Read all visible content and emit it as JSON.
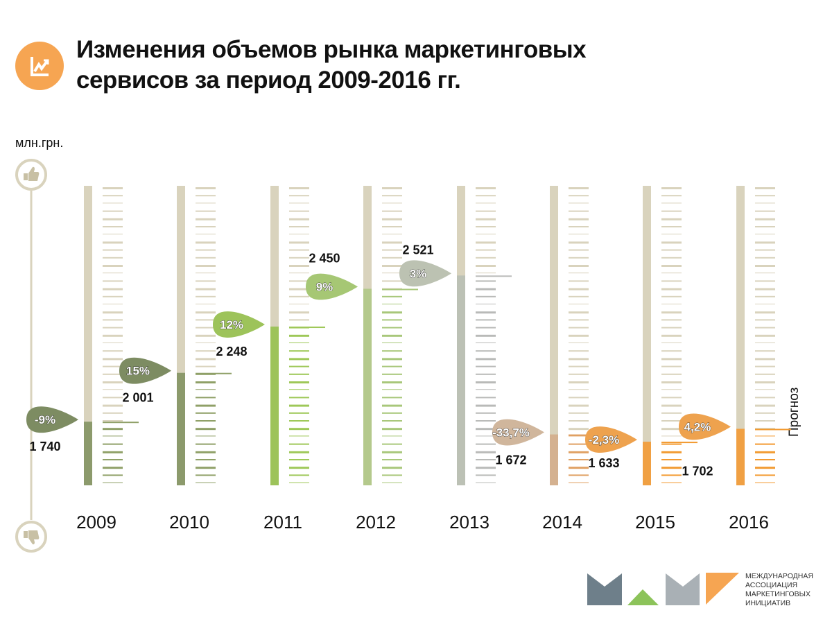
{
  "title_lines": [
    "Изменения объемов рынка маркетинговых",
    "сервисов за период 2009-2016 гг."
  ],
  "icons": {
    "title": "line-chart-icon",
    "top": "thumbs-up-icon",
    "bottom": "thumbs-down-icon"
  },
  "unit_label": "млн.грн.",
  "forecast_label": "Прогноз",
  "logo": {
    "text_lines": [
      "МЕЖДУНАРОДНАЯ",
      "АССОЦИАЦИЯ",
      "МАРКЕТИНГОВЫХ",
      "ИНИЦИАТИВ"
    ],
    "colors": [
      "#6e7f8a",
      "#8cc35a",
      "#a9b0b5",
      "#f6a552"
    ]
  },
  "chart_data": {
    "type": "bar",
    "title": "Изменения объемов рынка маркетинговых сервисов за период 2009-2016 гг.",
    "ylabel": "млн.грн.",
    "xlabel": "",
    "ylim": [
      1400,
      3000
    ],
    "categories": [
      "2009",
      "2010",
      "2011",
      "2012",
      "2013",
      "2014",
      "2015",
      "2016"
    ],
    "values": [
      1740,
      2001,
      2248,
      2450,
      2521,
      1672,
      1633,
      1702
    ],
    "value_labels": [
      "1 740",
      "2 001",
      "2 248",
      "2 450",
      "2 521",
      "1 672",
      "1 633",
      "1 702"
    ],
    "change_labels": [
      "-9%",
      "15%",
      "12%",
      "9%",
      "3%",
      "-33,7%",
      "-2,3%",
      "4,2%"
    ],
    "forecast_categories": [
      "2016"
    ],
    "colors": {
      "track": "#d9d3bd",
      "bars": [
        "#8c9a6c",
        "#8c9a6c",
        "#9dc35a",
        "#b4c98c",
        "#bcc1b5",
        "#d4b190",
        "#f0a043",
        "#f0a043"
      ],
      "bubbles": [
        "#7d8c62",
        "#7d8c62",
        "#9dc35a",
        "#a6c774",
        "#bcc2b2",
        "#d0b69c",
        "#eea24e",
        "#eea24e"
      ],
      "ticks": [
        "#8fa067",
        "#8fa067",
        "#9ec858",
        "#a8c77a",
        "#b9bab8",
        "#e0a062",
        "#f29a30",
        "#f29a30"
      ],
      "axis": "#d9d3bd"
    },
    "grid": false,
    "legend": "none"
  }
}
